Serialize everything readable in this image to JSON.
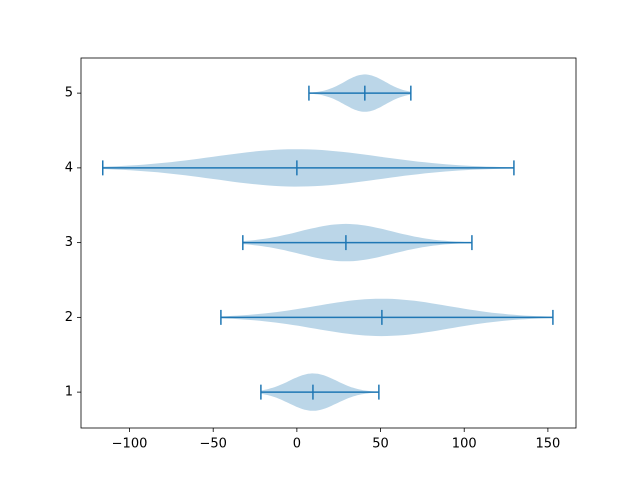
{
  "chart_data": {
    "type": "violin",
    "orientation": "horizontal",
    "color": "#1f77b4",
    "xlim": [
      -129,
      166.8
    ],
    "ylim": [
      0.52,
      5.47
    ],
    "xticks": [
      {
        "value": -100,
        "label": "−100"
      },
      {
        "value": -50,
        "label": "−50"
      },
      0,
      50,
      100,
      150
    ],
    "yticks": [
      1,
      2,
      3,
      4,
      5
    ],
    "violins": [
      {
        "position": 1,
        "min": -21.5,
        "max": 49,
        "mean": 9.6
      },
      {
        "position": 2,
        "min": -45.4,
        "max": 153,
        "mean": 50.8
      },
      {
        "position": 3,
        "min": -32.3,
        "max": 104.6,
        "mean": 29.3
      },
      {
        "position": 4,
        "min": -116,
        "max": 129.7,
        "mean": 0
      },
      {
        "position": 5,
        "min": 7.2,
        "max": 68.1,
        "mean": 40.6
      }
    ]
  }
}
